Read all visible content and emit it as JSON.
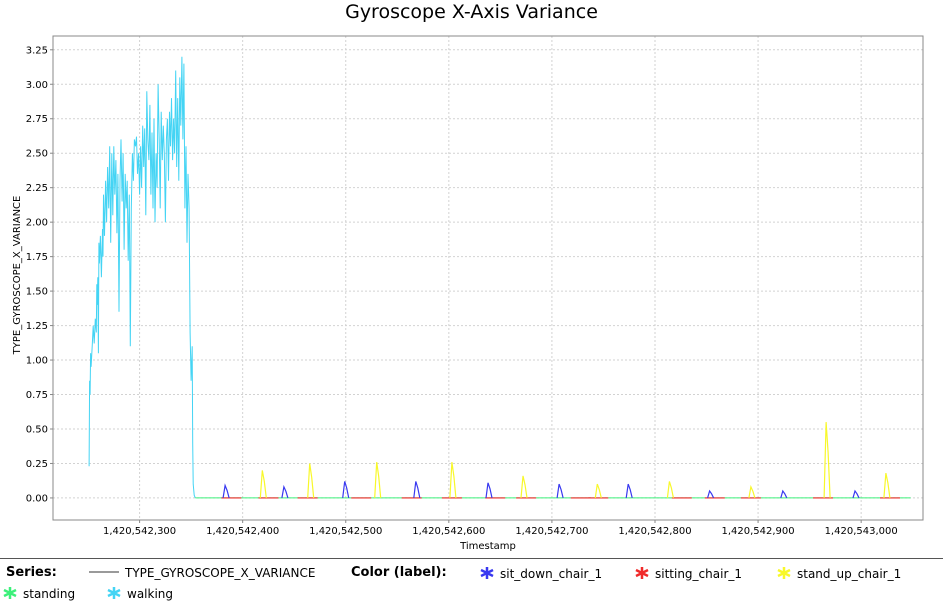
{
  "chart_data": {
    "type": "line",
    "title": "Gyroscope X-Axis Variance",
    "xlabel": "Timestamp",
    "ylabel": "TYPE_GYROSCOPE_X_VARIANCE",
    "xlim": [
      1420542216,
      1420543060
    ],
    "ylim": [
      -0.16,
      3.35
    ],
    "x_ticks": [
      1420542300,
      1420542400,
      1420542500,
      1420542600,
      1420542700,
      1420542800,
      1420542900,
      1420543000
    ],
    "x_tick_labels": [
      "1,420,542,300",
      "1,420,542,400",
      "1,420,542,500",
      "1,420,542,600",
      "1,420,542,700",
      "1,420,542,800",
      "1,420,542,900",
      "1,420,543,000"
    ],
    "y_ticks": [
      0,
      0.25,
      0.5,
      0.75,
      1.0,
      1.25,
      1.5,
      1.75,
      2.0,
      2.25,
      2.5,
      2.75,
      3.0,
      3.25
    ],
    "y_tick_labels": [
      "0.00",
      "0.25",
      "0.50",
      "0.75",
      "1.00",
      "1.25",
      "1.50",
      "1.75",
      "2.00",
      "2.25",
      "2.50",
      "2.75",
      "3.00",
      "3.25"
    ],
    "grid": true,
    "legend_position": "bottom",
    "series_name": "TYPE_GYROSCOPE_X_VARIANCE",
    "series": [
      {
        "label": "walking",
        "color": "#44d4f4",
        "points": [
          [
            1420542251,
            0.23
          ],
          [
            1420542251.5,
            0.85
          ],
          [
            1420542252,
            0.75
          ],
          [
            1420542252.5,
            1.05
          ],
          [
            1420542253,
            0.95
          ],
          [
            1420542254,
            1.1
          ],
          [
            1420542255,
            1.25
          ],
          [
            1420542256,
            1.12
          ],
          [
            1420542257,
            1.3
          ],
          [
            1420542258,
            1.2
          ],
          [
            1420542258.5,
            1.55
          ],
          [
            1420542259,
            1.4
          ],
          [
            1420542259.5,
            1.6
          ],
          [
            1420542260,
            1.05
          ],
          [
            1420542260.5,
            1.85
          ],
          [
            1420542261,
            1.7
          ],
          [
            1420542262,
            1.9
          ],
          [
            1420542263,
            1.6
          ],
          [
            1420542264,
            1.95
          ],
          [
            1420542264.5,
            1.75
          ],
          [
            1420542265,
            2.2
          ],
          [
            1420542266,
            1.9
          ],
          [
            1420542267,
            2.3
          ],
          [
            1420542268,
            2.0
          ],
          [
            1420542269,
            2.4
          ],
          [
            1420542270,
            2.1
          ],
          [
            1420542271,
            2.55
          ],
          [
            1420542272,
            1.85
          ],
          [
            1420542273,
            2.5
          ],
          [
            1420542274,
            2.05
          ],
          [
            1420542275,
            2.55
          ],
          [
            1420542276,
            2.2
          ],
          [
            1420542277,
            2.45
          ],
          [
            1420542278,
            1.92
          ],
          [
            1420542279,
            2.35
          ],
          [
            1420542280,
            1.35
          ],
          [
            1420542281,
            2.3
          ],
          [
            1420542282,
            2.6
          ],
          [
            1420542283,
            2.15
          ],
          [
            1420542284,
            2.5
          ],
          [
            1420542285,
            1.8
          ],
          [
            1420542286,
            2.35
          ],
          [
            1420542287,
            2.1
          ],
          [
            1420542288,
            2.3
          ],
          [
            1420542289,
            1.72
          ],
          [
            1420542290,
            2.2
          ],
          [
            1420542291,
            1.1
          ],
          [
            1420542292,
            2.1
          ],
          [
            1420542293,
            2.5
          ],
          [
            1420542294,
            2.3
          ],
          [
            1420542295,
            2.6
          ],
          [
            1420542296,
            2.55
          ],
          [
            1420542297,
            2.62
          ],
          [
            1420542298,
            2.35
          ],
          [
            1420542299,
            2.5
          ],
          [
            1420542300,
            2.2
          ],
          [
            1420542301,
            2.55
          ],
          [
            1420542302,
            2.25
          ],
          [
            1420542303,
            2.7
          ],
          [
            1420542304,
            2.4
          ],
          [
            1420542305,
            2.68
          ],
          [
            1420542306,
            2.05
          ],
          [
            1420542307,
            2.95
          ],
          [
            1420542308,
            2.6
          ],
          [
            1420542309,
            2.45
          ],
          [
            1420542310,
            2.85
          ],
          [
            1420542311,
            2.2
          ],
          [
            1420542312,
            2.65
          ],
          [
            1420542313,
            2.1
          ],
          [
            1420542314,
            2.75
          ],
          [
            1420542315,
            2.0
          ],
          [
            1420542316,
            2.5
          ],
          [
            1420542317,
            2.25
          ],
          [
            1420542318,
            3.0
          ],
          [
            1420542319,
            2.6
          ],
          [
            1420542320,
            2.1
          ],
          [
            1420542321,
            2.8
          ],
          [
            1420542322,
            2.45
          ],
          [
            1420542323,
            2.7
          ],
          [
            1420542324,
            2.5
          ],
          [
            1420542325,
            2.0
          ],
          [
            1420542326,
            2.6
          ],
          [
            1420542327,
            2.75
          ],
          [
            1420542328,
            2.3
          ],
          [
            1420542329,
            2.8
          ],
          [
            1420542330,
            2.55
          ],
          [
            1420542331,
            2.9
          ],
          [
            1420542332,
            2.45
          ],
          [
            1420542333,
            2.75
          ],
          [
            1420542334,
            2.5
          ],
          [
            1420542335,
            3.1
          ],
          [
            1420542336,
            2.4
          ],
          [
            1420542337,
            2.9
          ],
          [
            1420542338,
            2.3
          ],
          [
            1420542339,
            3.05
          ],
          [
            1420542340,
            2.7
          ],
          [
            1420542341,
            3.2
          ],
          [
            1420542342,
            2.6
          ],
          [
            1420542343,
            3.15
          ],
          [
            1420542344,
            2.1
          ],
          [
            1420542345,
            2.55
          ],
          [
            1420542346,
            1.85
          ],
          [
            1420542347,
            2.35
          ],
          [
            1420542348,
            2.1
          ],
          [
            1420542349,
            1.2
          ],
          [
            1420542350,
            0.85
          ],
          [
            1420542351,
            1.1
          ],
          [
            1420542351.5,
            0.4
          ],
          [
            1420542352,
            0.1
          ],
          [
            1420542353,
            0.02
          ],
          [
            1420542354,
            0.0
          ]
        ]
      },
      {
        "label": "standing",
        "color": "#3cf07a",
        "points": [
          [
            1420542354,
            0.0
          ],
          [
            1420542381,
            0.0
          ],
          [
            1420542600,
            0.0
          ],
          [
            1420542940,
            0.0
          ],
          [
            1420543048,
            0.0
          ]
        ]
      },
      {
        "label": "sitting_chair_1",
        "color": "#f02a2a",
        "points": [
          [
            1420542389,
            0.0
          ],
          [
            1420542425,
            0.0
          ],
          [
            1420542463,
            0.0
          ],
          [
            1420542515,
            0.0
          ],
          [
            1420542564,
            0.0
          ],
          [
            1420542603,
            0.0
          ],
          [
            1420542645,
            0.0
          ],
          [
            1420542675,
            0.0
          ],
          [
            1420542728,
            0.0
          ],
          [
            1420542745,
            0.0
          ],
          [
            1420542826,
            0.0
          ],
          [
            1420542858,
            0.0
          ],
          [
            1420542893,
            0.0
          ],
          [
            1420542963,
            0.0
          ],
          [
            1420543028,
            0.0
          ]
        ]
      },
      {
        "label": "sit_down_chair_1",
        "color": "#3838f0",
        "spikes": [
          [
            1420542383,
            0.09
          ],
          [
            1420542440,
            0.08
          ],
          [
            1420542499,
            0.12
          ],
          [
            1420542568,
            0.12
          ],
          [
            1420542638,
            0.11
          ],
          [
            1420542707,
            0.1
          ],
          [
            1420542774,
            0.1
          ],
          [
            1420542853,
            0.05
          ],
          [
            1420542924,
            0.05
          ],
          [
            1420542994,
            0.05
          ]
        ]
      },
      {
        "label": "stand_up_chair_1",
        "color": "#f8f82a",
        "spikes": [
          [
            1420542419,
            0.2
          ],
          [
            1420542465,
            0.25
          ],
          [
            1420542530,
            0.26
          ],
          [
            1420542603,
            0.26
          ],
          [
            1420542672,
            0.16
          ],
          [
            1420542744,
            0.1
          ],
          [
            1420542814,
            0.12
          ],
          [
            1420542893,
            0.08
          ],
          [
            1420542966,
            0.55
          ],
          [
            1420543024,
            0.18
          ]
        ]
      }
    ]
  },
  "legend": {
    "series_heading": "Series:",
    "series_name": "TYPE_GYROSCOPE_X_VARIANCE",
    "color_heading": "Color (label):",
    "items": [
      {
        "label": "sit_down_chair_1",
        "color": "#3838f0"
      },
      {
        "label": "sitting_chair_1",
        "color": "#f02a2a"
      },
      {
        "label": "stand_up_chair_1",
        "color": "#f8f82a"
      },
      {
        "label": "standing",
        "color": "#3cf07a"
      },
      {
        "label": "walking",
        "color": "#44d4f4"
      }
    ]
  }
}
